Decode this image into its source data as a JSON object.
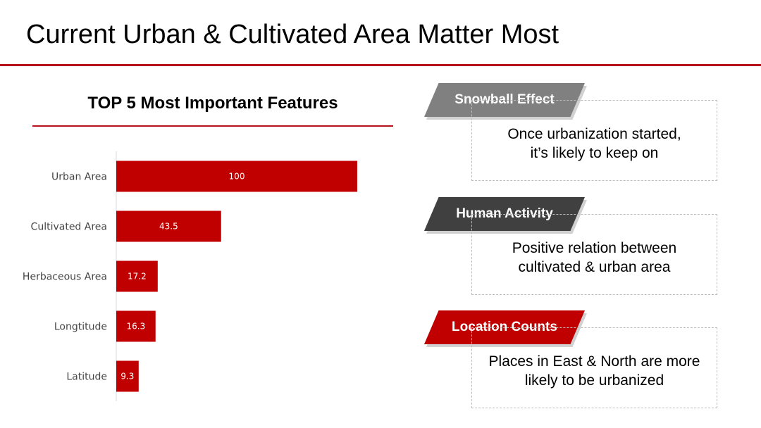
{
  "slide": {
    "title": "Current Urban & Cultivated Area Matter Most"
  },
  "colors": {
    "accent": "#b5121b",
    "bar": "#c00000",
    "tab_gray": "#808080",
    "tab_dark": "#404040",
    "tab_red": "#c00000"
  },
  "chart_data": {
    "type": "bar",
    "orientation": "horizontal",
    "title": "TOP 5 Most Important Features",
    "categories": [
      "Urban Area",
      "Cultivated Area",
      "Herbaceous Area",
      "Longtitude",
      "Latitude"
    ],
    "values": [
      100,
      43.5,
      17.2,
      16.3,
      9.3
    ],
    "data_labels": [
      "100",
      "43.5",
      "17.2",
      "16.3",
      "9.3"
    ],
    "xlabel": "",
    "ylabel": "",
    "xlim": [
      0,
      100
    ],
    "grid": false,
    "legend": "none"
  },
  "callouts": [
    {
      "label": "Snowball Effect",
      "line1": "Once urbanization started,",
      "line2": "it’s likely to keep on"
    },
    {
      "label": "Human Activity",
      "line1": "Positive relation between",
      "line2": "cultivated & urban area"
    },
    {
      "label": "Location Counts",
      "line1": "Places in East & North are more",
      "line2": "likely to be urbanized"
    }
  ]
}
